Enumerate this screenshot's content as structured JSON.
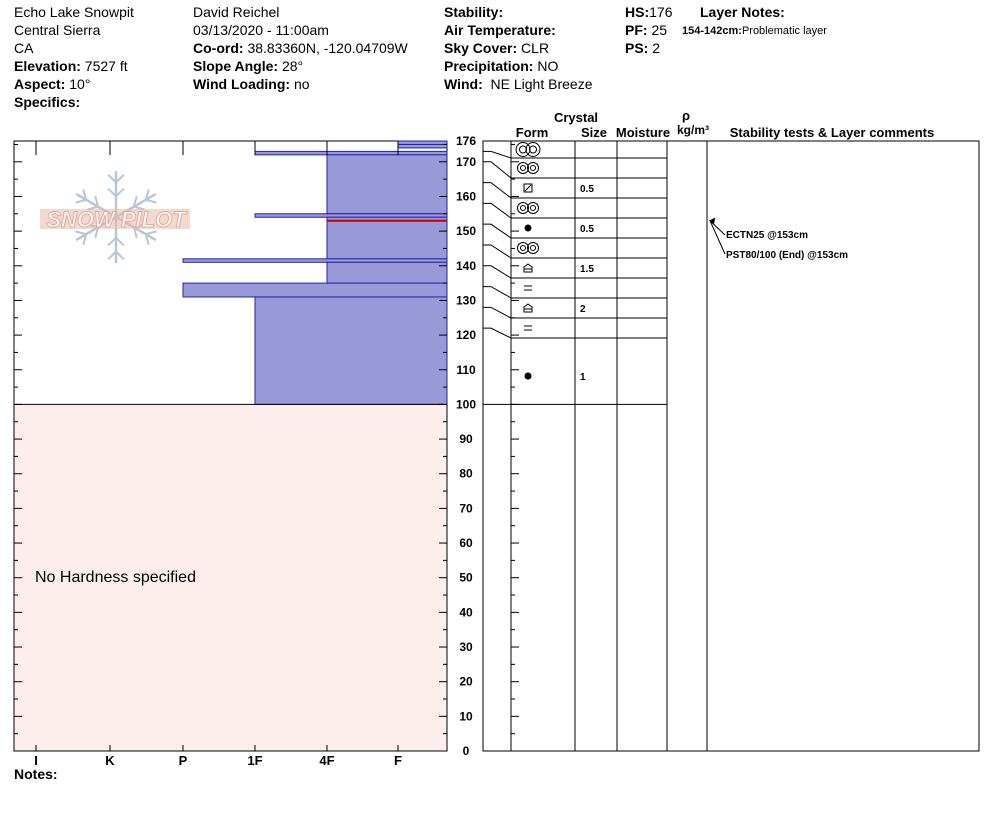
{
  "site": {
    "name": "Echo Lake Snowpit",
    "region": "Central Sierra",
    "state": "CA",
    "elevation_label": "Elevation:",
    "elevation": "7527 ft",
    "aspect_label": "Aspect:",
    "aspect": "10°",
    "specifics_label": "Specifics:"
  },
  "observer": {
    "name": "David Reichel",
    "datetime": "03/13/2020 - 11:00am",
    "coord_label": "Co-ord:",
    "coord": "38.83360N, -120.04709W",
    "slope_label": "Slope Angle:",
    "slope": "28°",
    "wind_loading_label": "Wind Loading:",
    "wind_loading": "no"
  },
  "conditions": {
    "stability_label": "Stability:",
    "air_temp_label": "Air Temperature:",
    "sky_label": "Sky Cover:",
    "sky": "CLR",
    "precip_label": "Precipitation:",
    "precip": "NO",
    "wind_label": "Wind:",
    "wind": "NE Light Breeze"
  },
  "pit": {
    "hs_label": "HS:",
    "hs": "176",
    "pf_label": "PF:",
    "pf": "25",
    "ps_label": "PS:",
    "ps": "2",
    "layer_notes_label": "Layer Notes:",
    "layer_note_range": "154-142cm:",
    "layer_note_text": "Problematic layer"
  },
  "notes_label": "Notes:",
  "watermark": "SNOW PILOT",
  "no_hardness_text": "No Hardness specified",
  "columns": {
    "crystal": "Crystal",
    "form": "Form",
    "size": "Size",
    "moisture": "Moisture",
    "rho": "ρ",
    "density_unit": "kg/m³",
    "stability": "Stability tests & Layer comments"
  },
  "colors": {
    "layer_fill": "#9999d8",
    "layer_stroke": "#2222aa",
    "no_hardness_bg": "#fdeeee",
    "weak_layer_line": "#cc0000",
    "watermark": "#e8b8a8"
  },
  "chart_data": {
    "type": "snow_profile",
    "hardness_ticks": [
      "I",
      "K",
      "P",
      "1F",
      "4F",
      "F"
    ],
    "depth_ticks": [
      0,
      10,
      20,
      30,
      40,
      50,
      60,
      70,
      80,
      90,
      100,
      110,
      120,
      130,
      140,
      150,
      160,
      170,
      176
    ],
    "ylim": [
      0,
      176
    ],
    "hardness_layers": [
      {
        "top": 176,
        "bottom": 175,
        "hardness": "F"
      },
      {
        "top": 175,
        "bottom": 174,
        "hardness": "F"
      },
      {
        "top": 173,
        "bottom": 172,
        "hardness": "1F"
      },
      {
        "top": 172,
        "bottom": 155,
        "hardness": "4F"
      },
      {
        "top": 155,
        "bottom": 154,
        "hardness": "1F"
      },
      {
        "top": 154,
        "bottom": 142,
        "hardness": "4F"
      },
      {
        "top": 142,
        "bottom": 141,
        "hardness": "P"
      },
      {
        "top": 141,
        "bottom": 135,
        "hardness": "4F"
      },
      {
        "top": 135,
        "bottom": 131,
        "hardness": "P"
      },
      {
        "top": 131,
        "bottom": 100,
        "hardness": "1F"
      }
    ],
    "weak_layer_depth": 153,
    "unspecified_hardness": {
      "top": 100,
      "bottom": 0
    },
    "grain_rows": [
      {
        "top": 176,
        "bottom": 173,
        "form": "rounding-faceted",
        "size": ""
      },
      {
        "top": 173,
        "bottom": 170,
        "form": "rounding-faceted",
        "size": ""
      },
      {
        "top": 170,
        "bottom": 164,
        "form": "faceted-rounded",
        "size": "0.5"
      },
      {
        "top": 164,
        "bottom": 158,
        "form": "rounding-faceted",
        "size": ""
      },
      {
        "top": 158,
        "bottom": 152,
        "form": "melt-form",
        "size": "0.5"
      },
      {
        "top": 152,
        "bottom": 146,
        "form": "rounding-faceted",
        "size": ""
      },
      {
        "top": 146,
        "bottom": 140,
        "form": "depth-hoar",
        "size": "1.5"
      },
      {
        "top": 140,
        "bottom": 134,
        "form": "crust",
        "size": ""
      },
      {
        "top": 134,
        "bottom": 128,
        "form": "depth-hoar",
        "size": "2"
      },
      {
        "top": 128,
        "bottom": 122,
        "form": "crust",
        "size": ""
      },
      {
        "top": 122,
        "bottom": 100,
        "form": "melt-form",
        "size": "1"
      }
    ],
    "stability_tests": [
      {
        "label": "ECTN25 @153cm",
        "depth": 153
      },
      {
        "label": "PST80/100 (End) @153cm",
        "depth": 153
      }
    ]
  }
}
